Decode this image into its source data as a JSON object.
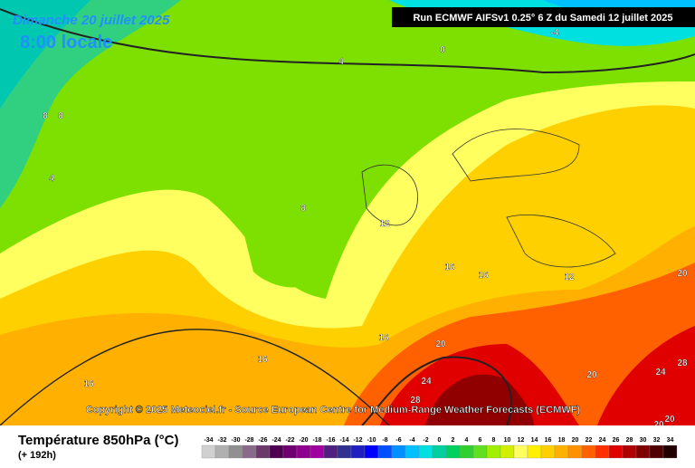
{
  "header": {
    "date": "Dimanche 20 juillet 2025",
    "time": "8:00 locale",
    "run": "Run ECMWF AIFSv1 0.25° 6 Z du Samedi 12 juillet 2025"
  },
  "map": {
    "contour_labels": [
      -4,
      0,
      4,
      8,
      8,
      4,
      8,
      12,
      16,
      16,
      12,
      20,
      16,
      20,
      16,
      16,
      24,
      28,
      20,
      24,
      28,
      20,
      20
    ],
    "copyright": "Copyright © 2025 Meteociel.fr - Source European Centre for Medium-Range Weather Forecasts (ECMWF)"
  },
  "footer": {
    "title": "Température 850hPa (°C)",
    "lead": "(+ 192h)"
  },
  "legend": {
    "values": [
      -34,
      -32,
      -30,
      -28,
      -26,
      -24,
      -22,
      -20,
      -18,
      -16,
      -14,
      -12,
      -10,
      -8,
      -6,
      -4,
      -2,
      0,
      2,
      4,
      6,
      8,
      10,
      12,
      14,
      16,
      18,
      20,
      22,
      24,
      26,
      28,
      30,
      32,
      34
    ],
    "colors": [
      "#d0d0d0",
      "#b0b0b0",
      "#909090",
      "#8a6a8a",
      "#6a3a6a",
      "#500050",
      "#700070",
      "#900090",
      "#a000a0",
      "#502080",
      "#303090",
      "#2020c0",
      "#0000ff",
      "#0050ff",
      "#0090ff",
      "#00c0ff",
      "#00e0e0",
      "#00d0a0",
      "#00d060",
      "#30d030",
      "#60e020",
      "#a0f000",
      "#d0f000",
      "#ffff60",
      "#fff000",
      "#ffd000",
      "#ffb000",
      "#ff9000",
      "#ff6000",
      "#ff3000",
      "#e00000",
      "#b00000",
      "#800000",
      "#500000",
      "#200000"
    ]
  }
}
